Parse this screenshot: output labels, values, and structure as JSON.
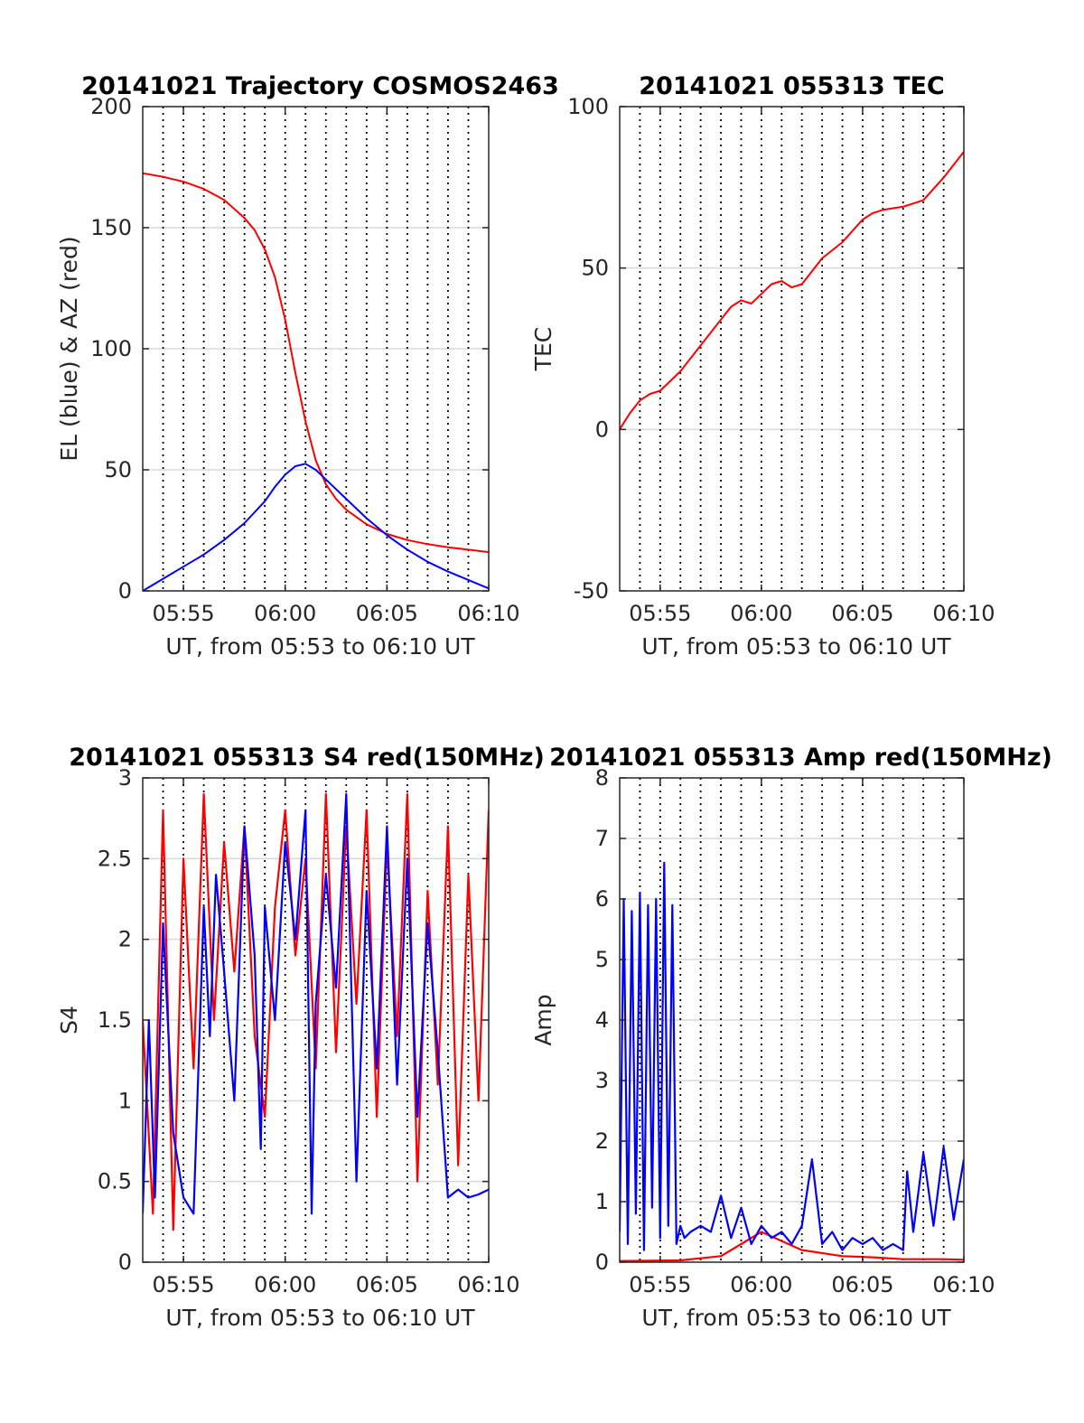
{
  "colors": {
    "red": "#ff0000",
    "blue": "#0000ff",
    "grid": "#d9d9d9",
    "axis": "#262626"
  },
  "chart_data": [
    {
      "type": "line",
      "title": "20141021 Trajectory COSMOS2463",
      "xlabel": "UT, from 05:53 to 06:10 UT",
      "ylabel": "EL (blue) & AZ (red)",
      "xlim": [
        0,
        17
      ],
      "ylim": [
        0,
        200
      ],
      "yticks": [
        0,
        50,
        100,
        150,
        200
      ],
      "xticks": [
        {
          "v": 2,
          "label": "05:55"
        },
        {
          "v": 7,
          "label": "06:00"
        },
        {
          "v": 12,
          "label": "06:05"
        },
        {
          "v": 17,
          "label": "06:10"
        }
      ],
      "grid": true,
      "series": [
        {
          "color": "red",
          "x": [
            0,
            1,
            2,
            3,
            4,
            5,
            5.5,
            6,
            6.5,
            7,
            7.5,
            8,
            8.5,
            9,
            9.5,
            10,
            11,
            12,
            13,
            14,
            15,
            16,
            17
          ],
          "values": [
            172.5,
            171,
            169,
            166,
            161.5,
            154,
            149,
            141,
            129.5,
            112,
            90,
            70,
            54,
            44,
            38,
            33.5,
            27.5,
            23.5,
            21,
            19.3,
            18,
            17,
            16
          ]
        },
        {
          "color": "blue",
          "x": [
            0,
            1,
            2,
            3,
            4,
            5,
            6,
            6.5,
            7,
            7.5,
            8,
            8.5,
            9,
            10,
            11,
            12,
            13,
            14,
            15,
            16,
            17
          ],
          "values": [
            0,
            5,
            10,
            15,
            21,
            28,
            37,
            43,
            48,
            51.5,
            52.5,
            50,
            46,
            38,
            30,
            23,
            17,
            12,
            8,
            4.5,
            1
          ]
        }
      ]
    },
    {
      "type": "line",
      "title": "20141021 055313 TEC",
      "xlabel": "UT, from 05:53 to 06:10 UT",
      "ylabel": "TEC",
      "xlim": [
        0,
        17
      ],
      "ylim": [
        -50,
        100
      ],
      "yticks": [
        -50,
        0,
        50,
        100
      ],
      "xticks": [
        {
          "v": 2,
          "label": "05:55"
        },
        {
          "v": 7,
          "label": "06:00"
        },
        {
          "v": 12,
          "label": "06:05"
        },
        {
          "v": 17,
          "label": "06:10"
        }
      ],
      "grid": true,
      "series": [
        {
          "color": "red",
          "x": [
            0,
            0.5,
            1,
            1.5,
            2,
            3,
            4,
            5,
            5.5,
            6,
            6.5,
            7,
            7.5,
            8,
            8.5,
            9,
            9.5,
            10,
            11,
            12,
            12.5,
            13,
            14,
            15,
            16,
            17
          ],
          "values": [
            0,
            5,
            9,
            11,
            12,
            18,
            26,
            34,
            38,
            40,
            39,
            42,
            45,
            46,
            44,
            45,
            49,
            53,
            58,
            65,
            67,
            68,
            69,
            71,
            78,
            86
          ]
        }
      ]
    },
    {
      "type": "line",
      "title": "20141021 055313 S4 red(150MHz)",
      "xlabel": "UT, from 05:53 to 06:10 UT",
      "ylabel": "S4",
      "xlim": [
        0,
        17
      ],
      "ylim": [
        0,
        3
      ],
      "yticks": [
        0,
        0.5,
        1,
        1.5,
        2,
        2.5,
        3
      ],
      "xticks": [
        {
          "v": 2,
          "label": "05:55"
        },
        {
          "v": 7,
          "label": "06:00"
        },
        {
          "v": 12,
          "label": "06:05"
        },
        {
          "v": 17,
          "label": "06:10"
        }
      ],
      "grid": true,
      "series": [
        {
          "color": "red",
          "x": [
            0,
            0.5,
            1,
            1.5,
            2,
            2.5,
            3,
            3.5,
            4,
            4.5,
            5,
            5.5,
            6,
            6.5,
            7,
            7.5,
            8,
            8.5,
            9,
            9.5,
            10,
            10.5,
            11,
            11.5,
            12,
            12.5,
            13,
            13.5,
            14,
            14.5,
            15,
            15.5,
            16,
            16.5,
            17
          ],
          "values": [
            1.5,
            0.3,
            2.8,
            0.2,
            2.5,
            1.2,
            2.9,
            1.5,
            2.6,
            1.8,
            2.7,
            1.4,
            0.9,
            2.2,
            2.8,
            1.9,
            2.5,
            1.2,
            2.9,
            1.3,
            2.7,
            1.6,
            2.8,
            0.9,
            2.6,
            1.4,
            2.9,
            0.5,
            2.3,
            1.1,
            2.7,
            0.6,
            2.4,
            1.0,
            2.8
          ]
        },
        {
          "color": "blue",
          "x": [
            0,
            0.3,
            0.6,
            1,
            1.5,
            2,
            2.5,
            3,
            3.3,
            3.6,
            4,
            4.5,
            5,
            5.5,
            5.8,
            6,
            6.5,
            7,
            7.5,
            8,
            8.3,
            8.5,
            9,
            9.5,
            10,
            10.5,
            11,
            11.5,
            12,
            12.5,
            13,
            13.5,
            14,
            14.5,
            15,
            15.5,
            16,
            16.5,
            17
          ],
          "values": [
            0.3,
            1.5,
            0.4,
            2.1,
            0.8,
            0.4,
            0.3,
            2.2,
            1.4,
            2.4,
            1.8,
            1.0,
            2.7,
            1.9,
            0.7,
            2.2,
            1.5,
            2.6,
            2.0,
            2.8,
            0.3,
            1.6,
            2.4,
            1.7,
            2.9,
            0.5,
            2.3,
            1.2,
            2.7,
            1.1,
            2.5,
            0.9,
            2.1,
            1.3,
            0.4,
            0.45,
            0.4,
            0.42,
            0.45
          ]
        }
      ]
    },
    {
      "type": "line",
      "title": "20141021 055313 Amp red(150MHz)",
      "xlabel": "UT, from 05:53 to 06:10 UT",
      "ylabel": "Amp",
      "xlim": [
        0,
        17
      ],
      "ylim": [
        0,
        8
      ],
      "yticks": [
        0,
        1,
        2,
        3,
        4,
        5,
        6,
        7,
        8
      ],
      "xticks": [
        {
          "v": 2,
          "label": "05:55"
        },
        {
          "v": 7,
          "label": "06:00"
        },
        {
          "v": 12,
          "label": "06:05"
        },
        {
          "v": 17,
          "label": "06:10"
        }
      ],
      "grid": true,
      "series": [
        {
          "color": "red",
          "x": [
            0,
            3,
            5,
            7,
            9,
            11,
            12.5,
            14,
            15,
            16,
            17
          ],
          "values": [
            0.02,
            0.03,
            0.1,
            0.5,
            0.2,
            0.1,
            0.08,
            0.05,
            0.05,
            0.05,
            0.04
          ]
        },
        {
          "color": "blue",
          "x": [
            0,
            0.2,
            0.4,
            0.6,
            0.8,
            1,
            1.2,
            1.4,
            1.6,
            1.8,
            2,
            2.2,
            2.4,
            2.6,
            2.8,
            3,
            3.2,
            3.5,
            4,
            4.5,
            5,
            5.5,
            6,
            6.5,
            7,
            7.5,
            8,
            8.5,
            9,
            9.5,
            10,
            10.5,
            11,
            11.5,
            12,
            12.5,
            13,
            13.5,
            14,
            14.2,
            14.5,
            15,
            15.5,
            16,
            16.5,
            17
          ],
          "values": [
            0.5,
            6.0,
            0.3,
            5.8,
            0.8,
            6.1,
            0.2,
            5.9,
            0.9,
            6.0,
            0.4,
            6.6,
            0.6,
            5.9,
            0.3,
            0.6,
            0.4,
            0.5,
            0.6,
            0.5,
            1.1,
            0.4,
            0.9,
            0.3,
            0.6,
            0.4,
            0.5,
            0.3,
            0.6,
            1.7,
            0.3,
            0.5,
            0.2,
            0.4,
            0.3,
            0.4,
            0.2,
            0.3,
            0.2,
            1.5,
            0.5,
            1.8,
            0.6,
            1.9,
            0.7,
            1.7
          ]
        }
      ]
    }
  ]
}
